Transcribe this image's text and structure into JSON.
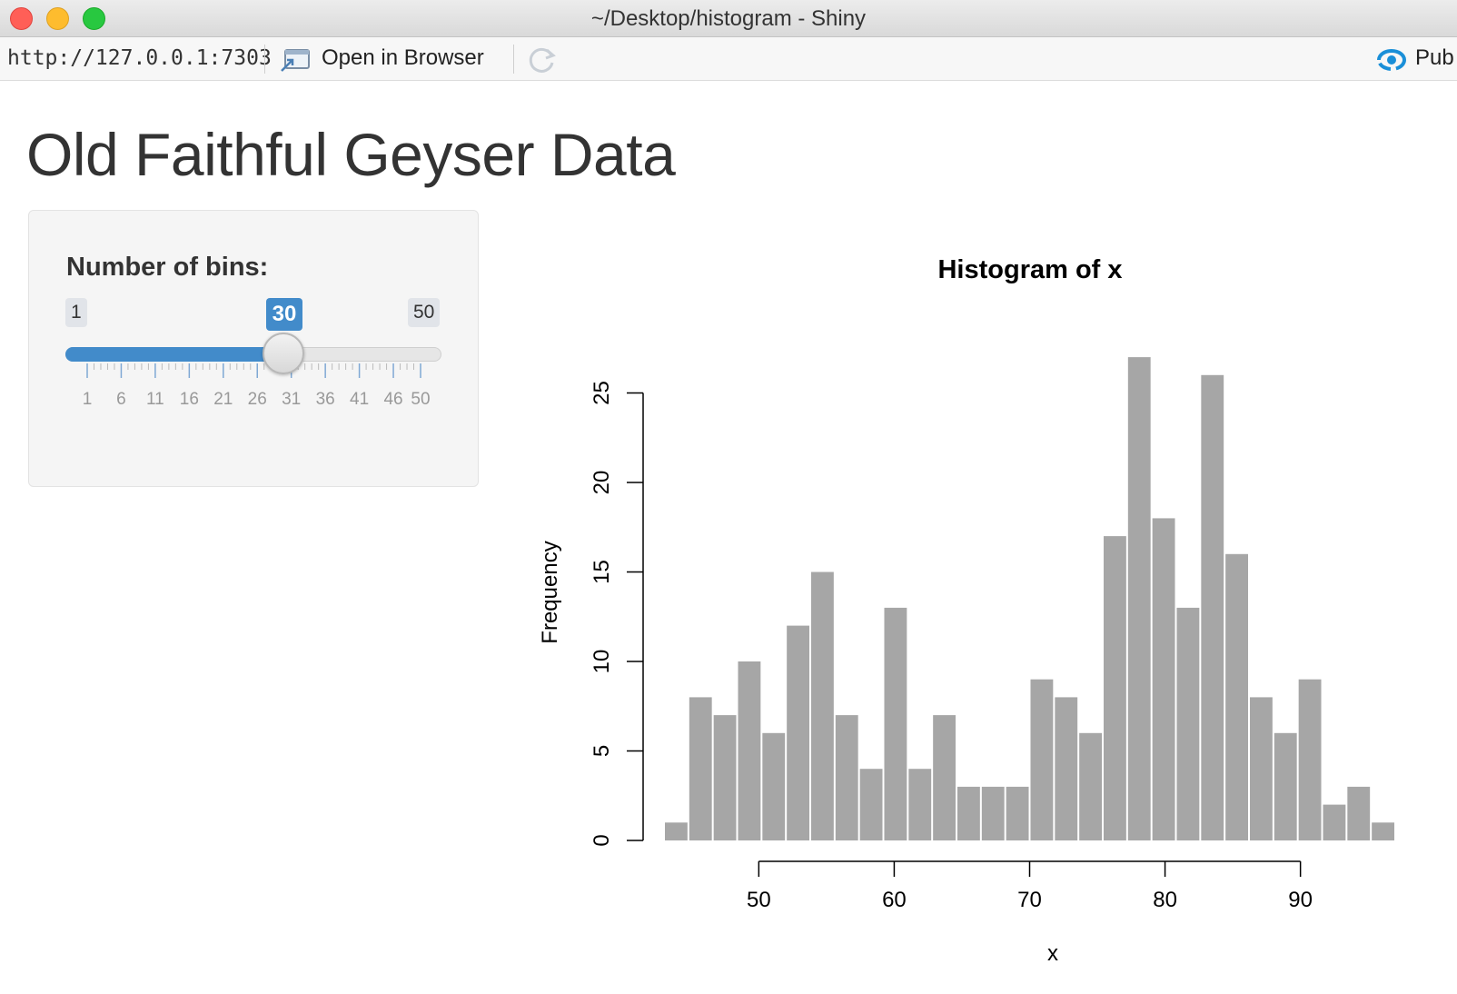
{
  "window": {
    "title": "~/Desktop/histogram - Shiny"
  },
  "toolbar": {
    "url": "http://127.0.0.1:7303",
    "open_in_browser": "Open in Browser",
    "publish": "Pub"
  },
  "page": {
    "title": "Old Faithful Geyser Data"
  },
  "sidebar": {
    "bins_label": "Number of bins:",
    "slider": {
      "min": 1,
      "max": 50,
      "value": 30,
      "min_label": "1",
      "max_label": "50",
      "value_label": "30",
      "grid_labels": [
        "1",
        "6",
        "11",
        "16",
        "21",
        "26",
        "31",
        "36",
        "41",
        "46",
        "50"
      ],
      "accent": "#428bca"
    }
  },
  "chart_data": {
    "type": "bar",
    "title": "Histogram of x",
    "xlabel": "x",
    "ylabel": "Frequency",
    "bin_start": 43,
    "bin_width": 1.8,
    "values": [
      1,
      8,
      7,
      10,
      6,
      12,
      15,
      7,
      4,
      13,
      4,
      7,
      3,
      3,
      3,
      9,
      8,
      6,
      17,
      27,
      18,
      13,
      26,
      16,
      8,
      6,
      9,
      2,
      3,
      1
    ],
    "xticks": [
      50,
      60,
      70,
      80,
      90
    ],
    "yticks": [
      0,
      5,
      10,
      15,
      20,
      25
    ],
    "bar_color": "#a6a6a6",
    "grid": false
  }
}
